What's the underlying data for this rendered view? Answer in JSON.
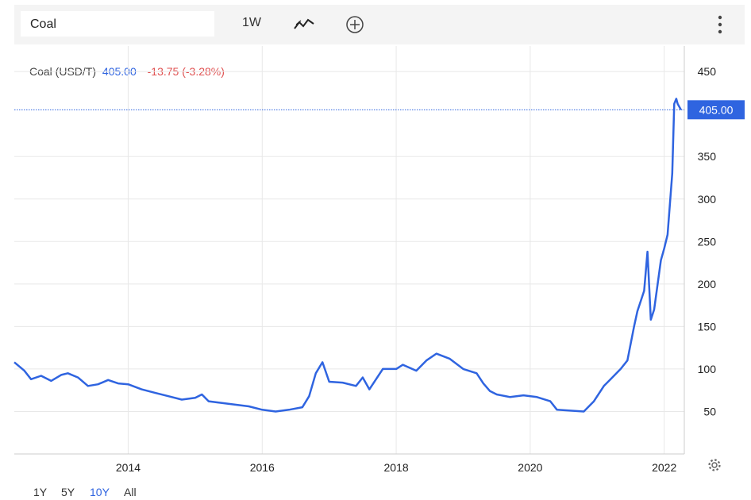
{
  "toolbar": {
    "search_value": "Coal",
    "interval_label": "1W",
    "line_icon": "line-chart-icon",
    "add_icon": "plus-circle-icon",
    "menu_icon": "vertical-dots-icon"
  },
  "legend": {
    "name": "Coal (USD/T)",
    "price": "405.00",
    "change": "-13.75 (-3.28%)"
  },
  "ranges": [
    "1Y",
    "5Y",
    "10Y",
    "All"
  ],
  "active_range": "10Y",
  "colors": {
    "line": "#2f64e0",
    "negative": "#e05050",
    "badge": "#2f64e0"
  },
  "chart_data": {
    "type": "line",
    "title": "Coal (USD/T)",
    "xlabel": "",
    "ylabel": "",
    "x_ticks": [
      "2014",
      "2016",
      "2018",
      "2020",
      "2022"
    ],
    "y_ticks": [
      "50",
      "100",
      "150",
      "200",
      "250",
      "300",
      "350",
      "450"
    ],
    "ylim": [
      0,
      480
    ],
    "xlim": [
      2012.3,
      2022.3
    ],
    "grid": true,
    "last_value_label": "405.00",
    "series": [
      {
        "name": "Coal (USD/T)",
        "x": [
          2012.3,
          2012.45,
          2012.55,
          2012.7,
          2012.85,
          2013.0,
          2013.1,
          2013.25,
          2013.4,
          2013.55,
          2013.7,
          2013.85,
          2014.0,
          2014.2,
          2014.4,
          2014.6,
          2014.8,
          2015.0,
          2015.1,
          2015.2,
          2015.4,
          2015.6,
          2015.8,
          2016.0,
          2016.2,
          2016.4,
          2016.6,
          2016.7,
          2016.8,
          2016.9,
          2017.0,
          2017.2,
          2017.4,
          2017.5,
          2017.6,
          2017.8,
          2018.0,
          2018.1,
          2018.3,
          2018.45,
          2018.6,
          2018.8,
          2019.0,
          2019.2,
          2019.3,
          2019.4,
          2019.5,
          2019.7,
          2019.9,
          2020.1,
          2020.3,
          2020.4,
          2020.6,
          2020.8,
          2020.95,
          2021.1,
          2021.2,
          2021.35,
          2021.45,
          2021.55,
          2021.6,
          2021.7,
          2021.75,
          2021.8,
          2021.85,
          2021.95,
          2022.0,
          2022.05,
          2022.12,
          2022.15,
          2022.18,
          2022.2,
          2022.25
        ],
        "values": [
          108,
          98,
          88,
          92,
          86,
          93,
          95,
          90,
          80,
          82,
          87,
          83,
          82,
          76,
          72,
          68,
          64,
          66,
          70,
          62,
          60,
          58,
          56,
          52,
          50,
          52,
          55,
          68,
          95,
          108,
          85,
          84,
          80,
          90,
          76,
          100,
          100,
          105,
          98,
          110,
          118,
          112,
          100,
          95,
          83,
          74,
          70,
          67,
          69,
          67,
          62,
          52,
          51,
          50,
          62,
          80,
          88,
          100,
          110,
          150,
          168,
          192,
          238,
          158,
          170,
          228,
          242,
          258,
          330,
          412,
          418,
          412,
          405
        ]
      }
    ]
  }
}
